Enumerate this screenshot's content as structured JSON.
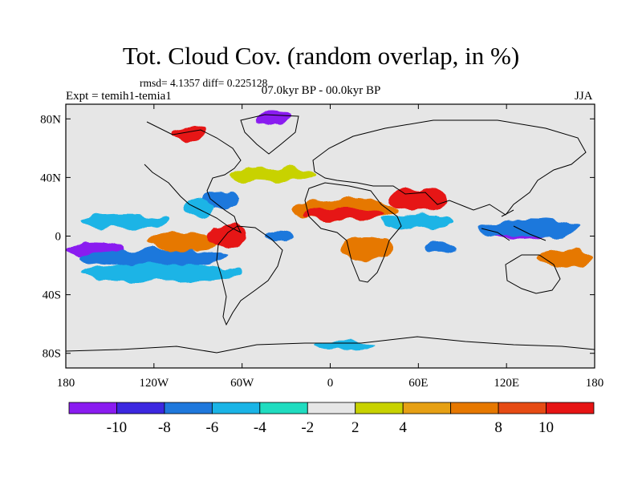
{
  "title": "Tot. Cloud Cov. (random overlap, in %)",
  "stats": "rmsd= 4.1357 diff= 0.225128",
  "experiment": "Expt = temih1-temia1",
  "period": "07.0kyr BP - 00.0kyr BP",
  "season": "JJA",
  "chart_data": {
    "type": "heatmap",
    "description_variable": "Total cloud cover difference (%)",
    "x_ticks": [
      {
        "value": -180,
        "label": "180"
      },
      {
        "value": -120,
        "label": "120W"
      },
      {
        "value": -60,
        "label": "60W"
      },
      {
        "value": 0,
        "label": "0"
      },
      {
        "value": 60,
        "label": "60E"
      },
      {
        "value": 120,
        "label": "120E"
      },
      {
        "value": 180,
        "label": "180"
      }
    ],
    "y_ticks": [
      {
        "value": 80,
        "label": "80N"
      },
      {
        "value": 40,
        "label": "40N"
      },
      {
        "value": 0,
        "label": "0"
      },
      {
        "value": -40,
        "label": "40S"
      },
      {
        "value": -80,
        "label": "80S"
      }
    ],
    "xlim": [
      -180,
      180
    ],
    "ylim": [
      -90,
      90
    ],
    "colorbar": {
      "levels": [
        -12,
        -10,
        -8,
        -6,
        -4,
        -2,
        2,
        4,
        6,
        8,
        10,
        12
      ],
      "colors": [
        "#8a1cf0",
        "#3c28e0",
        "#1f78dc",
        "#1ab4e6",
        "#20dcc0",
        "#e6e6e6",
        "#c8d200",
        "#e6a014",
        "#e67800",
        "#e64b14",
        "#e61414"
      ],
      "labels": [
        {
          "level": -10,
          "label": "-10"
        },
        {
          "level": -8,
          "label": "-8"
        },
        {
          "level": -6,
          "label": "-6"
        },
        {
          "level": -4,
          "label": "-4"
        },
        {
          "level": -2,
          "label": "-2"
        },
        {
          "level": 2,
          "label": "2"
        },
        {
          "level": 4,
          "label": "4"
        },
        {
          "level": 8,
          "label": "8"
        },
        {
          "level": 10,
          "label": "10"
        }
      ]
    },
    "anomaly_patches": [
      {
        "name": "NE Pacific cyan",
        "lon": -140,
        "lat": 10,
        "rx": 30,
        "ry": 5,
        "value": -5
      },
      {
        "name": "Central Pacific purple",
        "lon": -160,
        "lat": -10,
        "rx": 20,
        "ry": 5,
        "value": -11
      },
      {
        "name": "Tropical Pacific blue band",
        "lon": -120,
        "lat": -15,
        "rx": 50,
        "ry": 6,
        "value": -7
      },
      {
        "name": "Tropical Pacific cyan band",
        "lon": -115,
        "lat": -25,
        "rx": 55,
        "ry": 6,
        "value": -5
      },
      {
        "name": "E Pacific orange",
        "lon": -100,
        "lat": -4,
        "rx": 25,
        "ry": 6,
        "value": 7
      },
      {
        "name": "S America red",
        "lon": -70,
        "lat": 0,
        "rx": 12,
        "ry": 8,
        "value": 11
      },
      {
        "name": "Central America blue",
        "lon": -75,
        "lat": 25,
        "rx": 12,
        "ry": 6,
        "value": -7
      },
      {
        "name": "Gulf cyan",
        "lon": -90,
        "lat": 20,
        "rx": 10,
        "ry": 6,
        "value": -5
      },
      {
        "name": "N Atlantic yellow",
        "lon": -40,
        "lat": 42,
        "rx": 30,
        "ry": 5,
        "value": 3
      },
      {
        "name": "Atlantic blue",
        "lon": -35,
        "lat": 0,
        "rx": 10,
        "ry": 4,
        "value": -8
      },
      {
        "name": "Greenland purple",
        "lon": -40,
        "lat": 80,
        "rx": 12,
        "ry": 4,
        "value": -11
      },
      {
        "name": "Canada red",
        "lon": -95,
        "lat": 70,
        "rx": 12,
        "ry": 5,
        "value": 11
      },
      {
        "name": "Sahara orange",
        "lon": 10,
        "lat": 18,
        "rx": 35,
        "ry": 8,
        "value": 7
      },
      {
        "name": "Sahara red",
        "lon": 10,
        "lat": 15,
        "rx": 28,
        "ry": 5,
        "value": 11
      },
      {
        "name": "Arabia red",
        "lon": 60,
        "lat": 25,
        "rx": 20,
        "ry": 8,
        "value": 11
      },
      {
        "name": "Africa orange",
        "lon": 25,
        "lat": -8,
        "rx": 18,
        "ry": 8,
        "value": 7
      },
      {
        "name": "Indian Ocean cyan",
        "lon": 60,
        "lat": 10,
        "rx": 25,
        "ry": 5,
        "value": -5
      },
      {
        "name": "Indian Ocean blue",
        "lon": 75,
        "lat": -8,
        "rx": 12,
        "ry": 4,
        "value": -7
      },
      {
        "name": "Maritime Continent purple",
        "lon": 130,
        "lat": 2,
        "rx": 18,
        "ry": 5,
        "value": -11
      },
      {
        "name": "W Pacific blue",
        "lon": 135,
        "lat": 5,
        "rx": 35,
        "ry": 6,
        "value": -7
      },
      {
        "name": "SW Pacific orange",
        "lon": 160,
        "lat": -15,
        "rx": 20,
        "ry": 6,
        "value": 7
      },
      {
        "name": "Southern Ocean cyan",
        "lon": 10,
        "lat": -75,
        "rx": 20,
        "ry": 3,
        "value": -5
      }
    ]
  }
}
